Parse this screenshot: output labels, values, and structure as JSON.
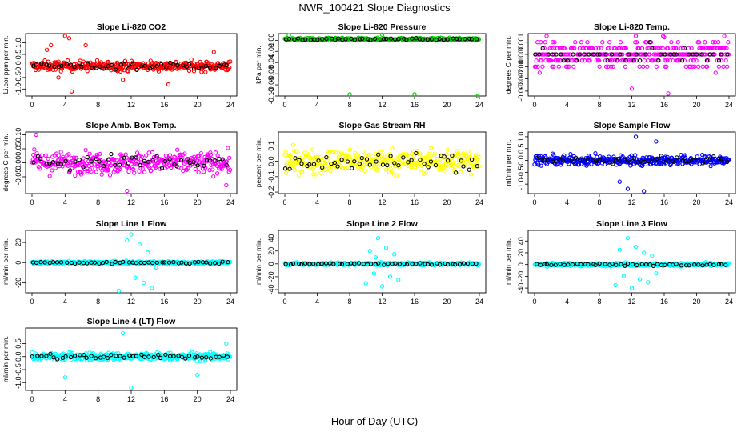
{
  "title": "NWR_100421  Slope Diagnostics",
  "xlabel": "Hour of Day (UTC)",
  "chart_data": [
    {
      "type": "scatter",
      "title": "Slope Li-820 CO2",
      "ylabel": "Li.cor ppm per min.",
      "xlim": [
        0,
        24
      ],
      "ylim": [
        -1.3,
        1.4
      ],
      "yticks": [
        -1.0,
        -0.5,
        0.0,
        0.5,
        1.0
      ],
      "ytick_labels": [
        "-1.0",
        "-0.5",
        "0.0",
        "0.5",
        "1.0"
      ],
      "xticks": [
        0,
        4,
        8,
        12,
        16,
        20,
        24
      ],
      "color": "#ff0000",
      "spread": 0.25,
      "outliers": [
        [
          1.8,
          0.7
        ],
        [
          2.3,
          0.9
        ],
        [
          3.2,
          -0.5
        ],
        [
          4.0,
          1.3
        ],
        [
          4.5,
          1.2
        ],
        [
          4.8,
          -1.1
        ],
        [
          6.5,
          0.9
        ],
        [
          11.0,
          -0.6
        ],
        [
          16.5,
          -0.8
        ],
        [
          22.0,
          0.6
        ]
      ]
    },
    {
      "type": "scatter",
      "title": "Slope Li-820 Pressure",
      "ylabel": "kPa per min.",
      "xlim": [
        0,
        24
      ],
      "ylim": [
        -0.1,
        0.012
      ],
      "yticks": [
        -0.1,
        -0.08,
        -0.06,
        -0.04,
        -0.02,
        0.0
      ],
      "ytick_labels": [
        "-0.10",
        "-0.08",
        "-0.06",
        "-0.04",
        "-0.02",
        "0.00"
      ],
      "xticks": [
        0,
        4,
        8,
        12,
        16,
        20,
        24
      ],
      "color": "#00cc00",
      "center": 0.002,
      "spread": 0.0025,
      "outliers": [
        [
          8.0,
          -0.097
        ],
        [
          16.0,
          -0.097
        ],
        [
          23.8,
          -0.1
        ],
        [
          0.5,
          0.009
        ],
        [
          12.0,
          0.01
        ]
      ]
    },
    {
      "type": "scatter",
      "title": "Slope Li-820 Temp.",
      "ylabel": "degrees C per min.",
      "xlim": [
        0,
        24
      ],
      "ylim": [
        -0.0034,
        0.0017
      ],
      "yticks": [
        -0.003,
        -0.002,
        -0.001,
        0.0,
        0.001
      ],
      "ytick_labels": [
        "-0.003",
        "-0.002",
        "-0.001",
        "0.000",
        "0.001"
      ],
      "xticks": [
        0,
        4,
        8,
        12,
        16,
        20,
        24
      ],
      "color": "#ff00ff",
      "discrete": 0.0005,
      "spread": 0.0008,
      "outliers": [
        [
          12.0,
          -0.0028
        ],
        [
          16.5,
          -0.0032
        ],
        [
          12.5,
          0.0015
        ],
        [
          16.0,
          0.0014
        ]
      ]
    },
    {
      "type": "scatter",
      "title": "Slope Amb. Box Temp.",
      "ylabel": "degrees C per min.",
      "xlim": [
        0,
        24
      ],
      "ylim": [
        -0.11,
        0.11
      ],
      "yticks": [
        -0.05,
        0.0,
        0.05,
        0.1
      ],
      "ytick_labels": [
        "-0.05",
        "0.00",
        "0.05",
        "0.10"
      ],
      "xticks": [
        0,
        4,
        8,
        12,
        16,
        20,
        24
      ],
      "color": "#ff00ff",
      "spread": 0.045,
      "outliers": [
        [
          0.5,
          0.1
        ],
        [
          11.5,
          -0.1
        ],
        [
          23.5,
          -0.08
        ]
      ]
    },
    {
      "type": "scatter",
      "title": "Slope Gas Stream RH",
      "ylabel": "percent per min.",
      "xlim": [
        0,
        24
      ],
      "ylim": [
        -0.21,
        0.19
      ],
      "yticks": [
        -0.2,
        -0.1,
        0.0,
        0.1
      ],
      "ytick_labels": [
        "-0.2",
        "-0.1",
        "0.0",
        "0.1"
      ],
      "xticks": [
        0,
        4,
        8,
        12,
        16,
        20,
        24
      ],
      "color": "#ffff00",
      "spread": 0.09,
      "outliers": []
    },
    {
      "type": "scatter",
      "title": "Slope Sample Flow",
      "ylabel": "ml/min per min.",
      "xlim": [
        0,
        24
      ],
      "ylim": [
        -1.4,
        1.2
      ],
      "yticks": [
        -1.0,
        -0.5,
        0.0,
        0.5,
        1.0
      ],
      "ytick_labels": [
        "-1.0",
        "-0.5",
        "0.0",
        "0.5",
        "1.0"
      ],
      "xticks": [
        0,
        4,
        8,
        12,
        16,
        20,
        24
      ],
      "color": "#0000ff",
      "spread": 0.25,
      "outliers": [
        [
          11.5,
          -1.2
        ],
        [
          12.5,
          1.0
        ],
        [
          13.5,
          -1.3
        ],
        [
          15.0,
          0.8
        ],
        [
          10.5,
          -0.9
        ]
      ]
    },
    {
      "type": "scatter",
      "title": "Slope Line 1 Flow",
      "ylabel": "ml/min per min.",
      "xlim": [
        0,
        24
      ],
      "ylim": [
        -30,
        32
      ],
      "yticks": [
        -20,
        0,
        20
      ],
      "ytick_labels": [
        "-20",
        "0",
        "20"
      ],
      "xticks": [
        0,
        4,
        8,
        12,
        16,
        20,
        24
      ],
      "color": "#00ffff",
      "spread": 1.5,
      "outliers": [
        [
          10.5,
          -28
        ],
        [
          11.5,
          22
        ],
        [
          12.0,
          28
        ],
        [
          12.5,
          -15
        ],
        [
          13.0,
          18
        ],
        [
          13.5,
          -20
        ],
        [
          14.0,
          10
        ],
        [
          14.5,
          -25
        ],
        [
          15.0,
          -5
        ]
      ]
    },
    {
      "type": "scatter",
      "title": "Slope Line 2 Flow",
      "ylabel": "ml/min per min.",
      "xlim": [
        0,
        24
      ],
      "ylim": [
        -45,
        52
      ],
      "yticks": [
        -40,
        -20,
        0,
        20,
        40
      ],
      "ytick_labels": [
        "-40",
        "-20",
        "0",
        "20",
        "40"
      ],
      "xticks": [
        0,
        4,
        8,
        12,
        16,
        20,
        24
      ],
      "color": "#00ffff",
      "spread": 2.5,
      "outliers": [
        [
          10.0,
          -30
        ],
        [
          10.5,
          20
        ],
        [
          11.0,
          -15
        ],
        [
          11.5,
          40
        ],
        [
          12.0,
          -35
        ],
        [
          12.5,
          25
        ],
        [
          13.0,
          -20
        ],
        [
          13.5,
          15
        ],
        [
          14.0,
          -25
        ],
        [
          11.2,
          10
        ]
      ]
    },
    {
      "type": "scatter",
      "title": "Slope Line 3 Flow",
      "ylabel": "ml/min per min.",
      "xlim": [
        0,
        24
      ],
      "ylim": [
        -48,
        58
      ],
      "yticks": [
        -40,
        -20,
        0,
        20,
        40
      ],
      "ytick_labels": [
        "-40",
        "-20",
        "0",
        "20",
        "40"
      ],
      "xticks": [
        0,
        4,
        8,
        12,
        16,
        20,
        24
      ],
      "color": "#00ffff",
      "spread": 3,
      "outliers": [
        [
          10.0,
          -35
        ],
        [
          10.5,
          25
        ],
        [
          11.0,
          -20
        ],
        [
          11.5,
          45
        ],
        [
          12.0,
          -40
        ],
        [
          12.5,
          30
        ],
        [
          13.0,
          -25
        ],
        [
          13.5,
          20
        ],
        [
          14.0,
          -30
        ],
        [
          14.5,
          15
        ],
        [
          15.0,
          -15
        ]
      ]
    },
    {
      "type": "scatter",
      "title": "Slope Line 4 (LT) Flow",
      "ylabel": "ml/min per min.",
      "xlim": [
        0,
        24
      ],
      "ylim": [
        -1.3,
        1.1
      ],
      "yticks": [
        -1.0,
        -0.5,
        0.0,
        0.5
      ],
      "ytick_labels": [
        "-1.0",
        "-0.5",
        "0.0",
        "0.5"
      ],
      "xticks": [
        0,
        4,
        8,
        12,
        16,
        20,
        24
      ],
      "color": "#00ffff",
      "spread": 0.18,
      "outliers": [
        [
          4.0,
          -0.8
        ],
        [
          11.0,
          0.9
        ],
        [
          12.0,
          -1.2
        ],
        [
          20.0,
          -0.7
        ],
        [
          23.5,
          0.5
        ]
      ]
    }
  ]
}
